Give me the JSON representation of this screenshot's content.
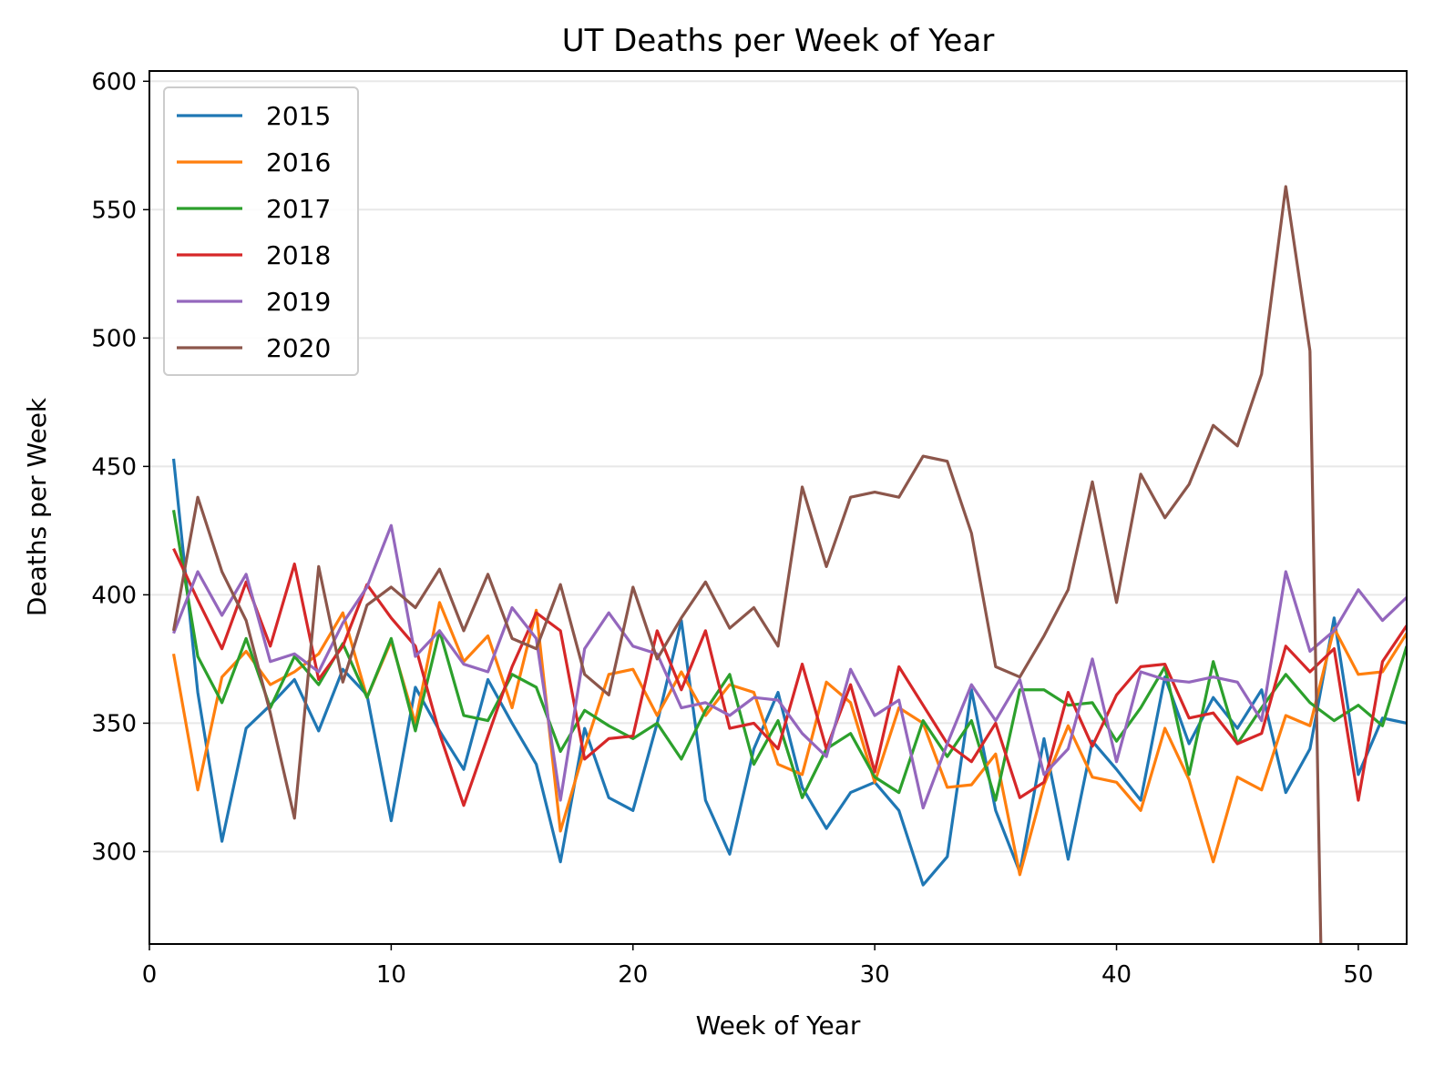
{
  "chart_data": {
    "type": "line",
    "title": "UT Deaths per Week of Year",
    "xlabel": "Week of Year",
    "ylabel": "Deaths per Week",
    "xlim": [
      0,
      52
    ],
    "ylim": [
      264,
      604
    ],
    "xticks": [
      0,
      10,
      20,
      30,
      40,
      50
    ],
    "yticks": [
      300,
      350,
      400,
      450,
      500,
      550,
      600
    ],
    "grid": "y",
    "legend_position": "upper-left",
    "x": [
      1,
      2,
      3,
      4,
      5,
      6,
      7,
      8,
      9,
      10,
      11,
      12,
      13,
      14,
      15,
      16,
      17,
      18,
      19,
      20,
      21,
      22,
      23,
      24,
      25,
      26,
      27,
      28,
      29,
      30,
      31,
      32,
      33,
      34,
      35,
      36,
      37,
      38,
      39,
      40,
      41,
      42,
      43,
      44,
      45,
      46,
      47,
      48,
      49,
      50,
      51,
      52
    ],
    "series": [
      {
        "name": "2015",
        "color": "#1f77b4",
        "values": [
          453,
          362,
          304,
          348,
          357,
          367,
          347,
          371,
          361,
          312,
          364,
          347,
          332,
          367,
          350,
          334,
          296,
          348,
          321,
          316,
          350,
          390,
          320,
          299,
          340,
          362,
          325,
          309,
          323,
          327,
          316,
          287,
          298,
          363,
          316,
          292,
          344,
          297,
          343,
          332,
          320,
          368,
          342,
          360,
          348,
          363,
          323,
          340,
          391,
          330,
          352,
          350
        ]
      },
      {
        "name": "2016",
        "color": "#ff7f0e",
        "values": [
          377,
          324,
          368,
          378,
          365,
          370,
          377,
          393,
          360,
          382,
          350,
          397,
          374,
          384,
          356,
          394,
          308,
          340,
          369,
          371,
          353,
          370,
          353,
          365,
          362,
          334,
          330,
          366,
          358,
          327,
          356,
          350,
          325,
          326,
          338,
          291,
          326,
          349,
          329,
          327,
          316,
          348,
          328,
          296,
          329,
          324,
          353,
          349,
          387,
          369,
          370,
          385
        ]
      },
      {
        "name": "2017",
        "color": "#2ca02c",
        "values": [
          433,
          376,
          358,
          383,
          356,
          376,
          365,
          381,
          360,
          383,
          347,
          386,
          353,
          351,
          369,
          364,
          339,
          355,
          349,
          344,
          350,
          336,
          355,
          369,
          334,
          351,
          321,
          340,
          346,
          329,
          323,
          351,
          337,
          351,
          320,
          363,
          363,
          357,
          358,
          343,
          356,
          372,
          330,
          374,
          342,
          356,
          369,
          358,
          351,
          357,
          349,
          380
        ]
      },
      {
        "name": "2018",
        "color": "#d62728",
        "values": [
          418,
          398,
          379,
          405,
          380,
          412,
          367,
          380,
          404,
          391,
          380,
          346,
          318,
          345,
          372,
          393,
          386,
          336,
          344,
          345,
          386,
          363,
          386,
          348,
          350,
          340,
          373,
          340,
          365,
          331,
          372,
          357,
          342,
          335,
          350,
          321,
          327,
          362,
          341,
          361,
          372,
          373,
          352,
          354,
          342,
          346,
          380,
          370,
          379,
          320,
          374,
          388
        ]
      },
      {
        "name": "2019",
        "color": "#9467bd",
        "values": [
          385,
          409,
          392,
          408,
          374,
          377,
          370,
          389,
          403,
          427,
          376,
          386,
          373,
          370,
          395,
          383,
          320,
          379,
          393,
          380,
          377,
          356,
          358,
          353,
          360,
          359,
          346,
          337,
          371,
          353,
          359,
          317,
          342,
          365,
          351,
          367,
          330,
          340,
          375,
          335,
          370,
          367,
          366,
          368,
          366,
          351,
          409,
          378,
          386,
          402,
          390,
          399
        ]
      },
      {
        "name": "2020",
        "color": "#8c564b",
        "values": [
          386,
          438,
          409,
          390,
          354,
          313,
          411,
          366,
          396,
          403,
          395,
          410,
          386,
          408,
          383,
          379,
          404,
          369,
          361,
          403,
          375,
          391,
          405,
          387,
          395,
          380,
          442,
          411,
          438,
          440,
          438,
          454,
          452,
          424,
          372,
          368,
          384,
          402,
          444,
          397,
          447,
          430,
          443,
          466,
          458,
          486,
          559,
          495,
          null,
          null,
          null,
          null
        ]
      }
    ],
    "extra_segments": [
      {
        "series": "2020",
        "from": [
          48,
          495
        ],
        "to": [
          48.45,
          264
        ]
      }
    ]
  }
}
